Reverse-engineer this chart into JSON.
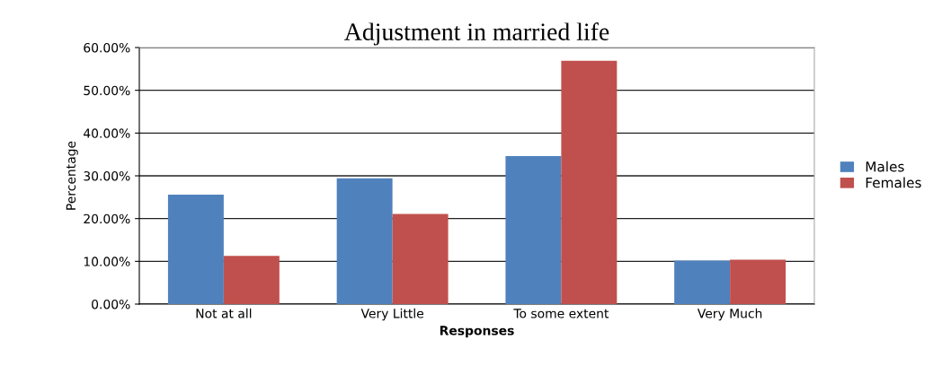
{
  "chart_data": {
    "type": "bar",
    "title": "Adjustment in married life",
    "xlabel": "Responses",
    "ylabel": "Percentage",
    "categories": [
      "Not at all",
      "Very Little",
      "To some extent",
      "Very Much"
    ],
    "series": [
      {
        "name": "Males",
        "color": "#4f81bd",
        "values": [
          25.6,
          29.4,
          34.6,
          10.2
        ]
      },
      {
        "name": "Females",
        "color": "#c0504d",
        "values": [
          11.3,
          21.1,
          56.9,
          10.4
        ]
      }
    ],
    "ylim": [
      0,
      60
    ],
    "yticks": [
      {
        "value": 0,
        "label": "0.00%"
      },
      {
        "value": 10,
        "label": "10.00%"
      },
      {
        "value": 20,
        "label": "20.00%"
      },
      {
        "value": 30,
        "label": "30.00%"
      },
      {
        "value": 40,
        "label": "40.00%"
      },
      {
        "value": 50,
        "label": "50.00%"
      },
      {
        "value": 60,
        "label": "60.00%"
      }
    ],
    "grid": "y",
    "legend": "right"
  }
}
